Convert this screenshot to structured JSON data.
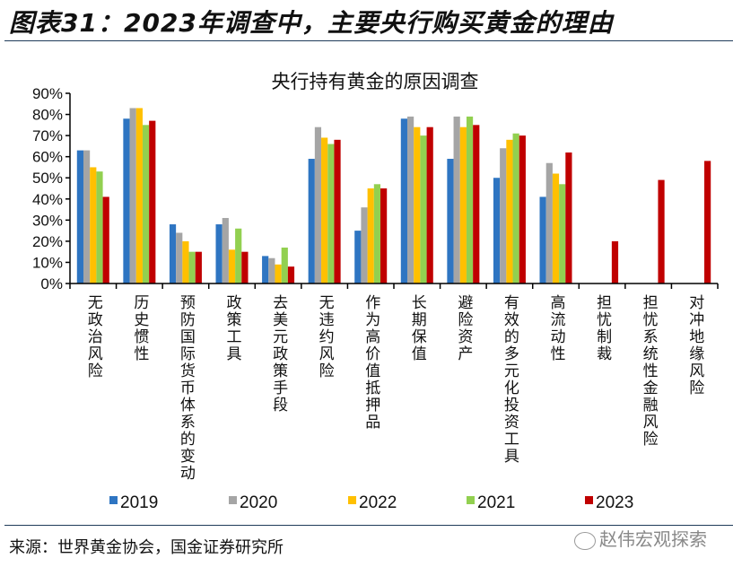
{
  "figure_title": "图表31：2023年调查中，主要央行购买黄金的理由",
  "source": "来源：世界黄金协会，国金证券研究所",
  "watermark": "赵伟宏观探索",
  "chart_data": {
    "type": "bar",
    "title": "央行持有黄金的原因调查",
    "xlabel": "",
    "ylabel": "",
    "ylim": [
      0,
      90
    ],
    "yticks": [
      "0%",
      "10%",
      "20%",
      "30%",
      "40%",
      "50%",
      "60%",
      "70%",
      "80%",
      "90%"
    ],
    "grid": false,
    "legend_position": "bottom",
    "categories": [
      "无政治风险",
      "历史惯性",
      "预防国际货币体系的变动",
      "政策工具",
      "去美元政策手段",
      "无违约风险",
      "作为高价值抵押品",
      "长期保值",
      "避险资产",
      "有效的多元化投资工具",
      "高流动性",
      "担忧制裁",
      "担忧系统性金融风险",
      "对冲地缘风险"
    ],
    "series": [
      {
        "name": "2019",
        "color": "#2e75c2",
        "values": [
          63,
          78,
          28,
          28,
          13,
          59,
          25,
          78,
          59,
          50,
          41,
          null,
          null,
          null
        ]
      },
      {
        "name": "2020",
        "color": "#a5a5a5",
        "values": [
          63,
          83,
          24,
          31,
          12,
          74,
          36,
          79,
          79,
          64,
          57,
          null,
          null,
          null
        ]
      },
      {
        "name": "2022",
        "color": "#ffc000",
        "values": [
          55,
          83,
          20,
          16,
          9,
          69,
          45,
          74,
          74,
          68,
          52,
          null,
          null,
          null
        ]
      },
      {
        "name": "2021",
        "color": "#92d050",
        "values": [
          53,
          75,
          15,
          26,
          17,
          66,
          47,
          70,
          79,
          71,
          47,
          null,
          null,
          null
        ]
      },
      {
        "name": "2023",
        "color": "#c00000",
        "values": [
          41,
          77,
          15,
          15,
          8,
          68,
          45,
          74,
          75,
          70,
          62,
          20,
          49,
          58
        ]
      }
    ]
  }
}
